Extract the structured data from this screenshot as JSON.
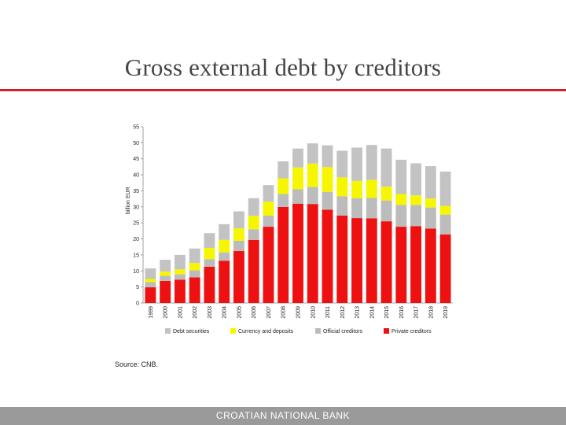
{
  "slide": {
    "title": "Gross external debt by creditors",
    "source": "Source: CNB.",
    "footer": "CROATIAN NATIONAL BANK"
  },
  "chart_data": {
    "type": "bar",
    "stacked": true,
    "categories": [
      "1999",
      "2000",
      "2001",
      "2002",
      "2003",
      "2004",
      "2005",
      "2006",
      "2007",
      "2008",
      "2009",
      "2010",
      "2011",
      "2012",
      "2013",
      "2014",
      "2015",
      "2016",
      "2017",
      "2018",
      "2019"
    ],
    "ylabel": "billion EUR",
    "ylim": [
      0,
      55
    ],
    "yticks": [
      0,
      5,
      10,
      15,
      20,
      25,
      30,
      35,
      40,
      45,
      50,
      55
    ],
    "grid": false,
    "legend_position": "bottom",
    "series": [
      {
        "name": "Private creditors",
        "color": "#ee1111",
        "values": [
          4.9,
          6.9,
          7.3,
          8.0,
          11.3,
          13.2,
          16.2,
          19.7,
          23.8,
          30.0,
          31.0,
          30.9,
          29.1,
          27.3,
          26.5,
          26.4,
          25.5,
          23.8,
          24.0,
          23.2,
          21.4
        ]
      },
      {
        "name": "Official creditors",
        "color": "#bcbcbc",
        "values": [
          1.6,
          1.6,
          1.7,
          2.2,
          2.4,
          2.6,
          3.2,
          3.3,
          3.5,
          4.0,
          4.5,
          5.3,
          5.6,
          6.0,
          6.2,
          6.4,
          6.5,
          6.8,
          6.6,
          6.6,
          6.2
        ]
      },
      {
        "name": "Currency and deposits",
        "color": "#f6f600",
        "values": [
          1.0,
          1.3,
          1.5,
          2.3,
          3.5,
          3.9,
          3.9,
          4.2,
          4.3,
          4.9,
          6.8,
          7.3,
          7.7,
          5.9,
          5.4,
          5.6,
          4.3,
          3.4,
          3.0,
          2.8,
          2.7
        ]
      },
      {
        "name": "Debt securities",
        "color": "#c3c3c3",
        "values": [
          3.3,
          3.7,
          4.5,
          4.5,
          4.6,
          4.9,
          5.3,
          5.5,
          5.2,
          5.3,
          5.9,
          6.3,
          6.8,
          8.3,
          10.4,
          10.9,
          11.9,
          10.7,
          10.0,
          10.1,
          10.7
        ]
      }
    ],
    "legend_order": [
      "Debt securities",
      "Currency and deposits",
      "Official creditors",
      "Private creditors"
    ]
  }
}
